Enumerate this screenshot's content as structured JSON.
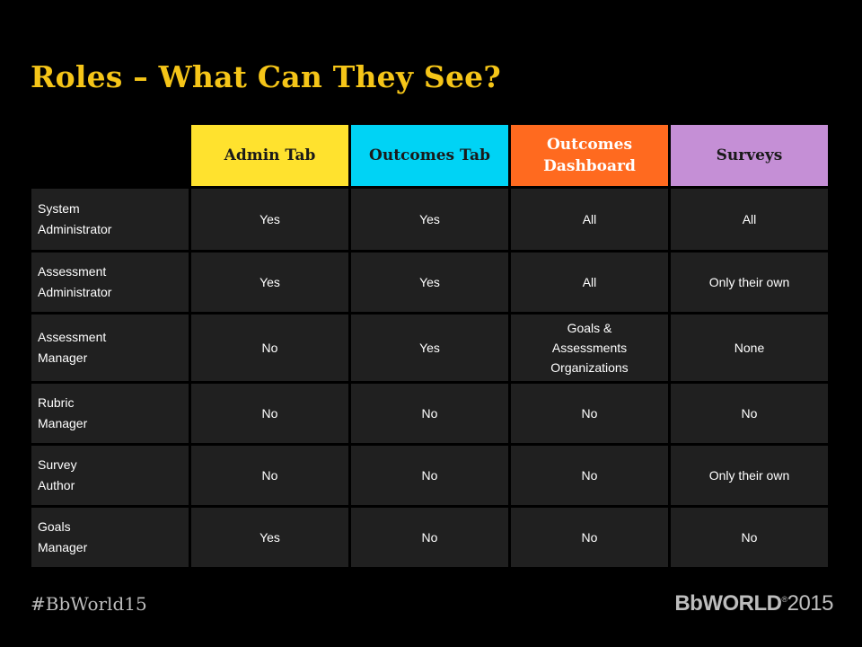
{
  "title": "Roles – What Can They See?",
  "colors": {
    "admin_tab": "#ffe22e",
    "outcomes_tab": "#00d3f5",
    "outcomes_dashboard": "#ff6a1f",
    "surveys": "#c58fd6",
    "title": "#f5c518"
  },
  "table": {
    "headers": [
      "Admin Tab",
      "Outcomes Tab",
      "Outcomes\nDashboard",
      "Surveys"
    ],
    "rows": [
      {
        "role": "System\nAdministrator",
        "cells": [
          "Yes",
          "Yes",
          "All",
          "All"
        ]
      },
      {
        "role": "Assessment\nAdministrator",
        "cells": [
          "Yes",
          "Yes",
          "All",
          "Only their own"
        ]
      },
      {
        "role": "Assessment\nManager",
        "cells": [
          "No",
          "Yes",
          "Goals &\nAssessments\nOrganizations",
          "None"
        ]
      },
      {
        "role": "Rubric\nManager",
        "cells": [
          "No",
          "No",
          "No",
          "No"
        ]
      },
      {
        "role": "Survey\nAuthor",
        "cells": [
          "No",
          "No",
          "No",
          "Only their own"
        ]
      },
      {
        "role": "Goals\nManager",
        "cells": [
          "Yes",
          "No",
          "No",
          "No"
        ]
      }
    ]
  },
  "footer": {
    "hashtag": "#BbWorld15",
    "brand": "BbWORLD",
    "trademark": "®",
    "year": "2015"
  }
}
